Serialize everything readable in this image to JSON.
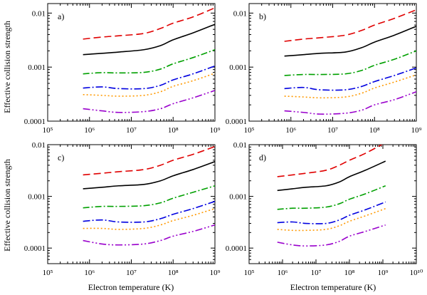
{
  "figure": {
    "ylabel": "Effective collision strength",
    "xlabel": "Electron temperature (K)"
  },
  "series_styles": [
    {
      "name": "series-1",
      "color": "#e00000",
      "dash": "10,5"
    },
    {
      "name": "series-2",
      "color": "#000000",
      "dash": ""
    },
    {
      "name": "series-3",
      "color": "#00a000",
      "dash": "9,3,2,3"
    },
    {
      "name": "series-4",
      "color": "#0000e0",
      "dash": "10,3,2,3"
    },
    {
      "name": "series-5",
      "color": "#ff9900",
      "dash": "2,3"
    },
    {
      "name": "series-6",
      "color": "#9900cc",
      "dash": "10,3,2,3,2,3"
    }
  ],
  "chart_data": [
    {
      "type": "line",
      "panel": "a)",
      "xscale": "log",
      "yscale": "log",
      "xlim": [
        100000,
        1000000000
      ],
      "ylim": [
        0.0001,
        0.015
      ],
      "xticks": [
        "10^5",
        "10^6",
        "10^7",
        "10^8",
        "10^9"
      ],
      "yticks": [
        "0.0001",
        "0.001",
        "0.01"
      ],
      "series": [
        {
          "name": "series-1",
          "x": [
            700000,
            2000000,
            5000000,
            20000000,
            50000000,
            100000000,
            300000000,
            1000000000
          ],
          "values": [
            0.0033,
            0.0036,
            0.0038,
            0.0042,
            0.0052,
            0.0065,
            0.0085,
            0.0125
          ]
        },
        {
          "name": "series-2",
          "x": [
            700000,
            2000000,
            5000000,
            20000000,
            50000000,
            100000000,
            300000000,
            1000000000
          ],
          "values": [
            0.0017,
            0.0018,
            0.0019,
            0.0021,
            0.0025,
            0.0032,
            0.0043,
            0.0062
          ]
        },
        {
          "name": "series-3",
          "x": [
            700000,
            2000000,
            5000000,
            20000000,
            50000000,
            100000000,
            300000000,
            1000000000
          ],
          "values": [
            0.00075,
            0.00079,
            0.00078,
            0.0008,
            0.00092,
            0.00115,
            0.0015,
            0.0021
          ]
        },
        {
          "name": "series-4",
          "x": [
            700000,
            2000000,
            5000000,
            20000000,
            50000000,
            100000000,
            300000000,
            1000000000
          ],
          "values": [
            0.00041,
            0.00043,
            0.0004,
            0.0004,
            0.00046,
            0.00058,
            0.00075,
            0.00105
          ]
        },
        {
          "name": "series-5",
          "x": [
            700000,
            2000000,
            5000000,
            20000000,
            50000000,
            100000000,
            300000000,
            1000000000
          ],
          "values": [
            0.00031,
            0.0003,
            0.00029,
            0.0003,
            0.00035,
            0.00044,
            0.00056,
            0.00077
          ]
        },
        {
          "name": "series-6",
          "x": [
            700000,
            2000000,
            5000000,
            20000000,
            50000000,
            100000000,
            300000000,
            1000000000
          ],
          "values": [
            0.00017,
            0.000155,
            0.000145,
            0.00015,
            0.00017,
            0.00021,
            0.00027,
            0.00037
          ]
        }
      ]
    },
    {
      "type": "line",
      "panel": "b)",
      "xscale": "log",
      "yscale": "log",
      "xlim": [
        100000,
        1000000000
      ],
      "ylim": [
        0.0001,
        0.015
      ],
      "xticks": [
        "10^5",
        "10^6",
        "10^7",
        "10^8",
        "10^9"
      ],
      "yticks": [
        "0.0001",
        "0.001",
        "0.01"
      ],
      "series": [
        {
          "name": "series-1",
          "x": [
            700000,
            2000000,
            5000000,
            20000000,
            50000000,
            100000000,
            300000000,
            1000000000
          ],
          "values": [
            0.003,
            0.0033,
            0.0035,
            0.0039,
            0.0048,
            0.006,
            0.008,
            0.0115
          ]
        },
        {
          "name": "series-2",
          "x": [
            700000,
            2000000,
            5000000,
            20000000,
            50000000,
            100000000,
            300000000,
            1000000000
          ],
          "values": [
            0.0016,
            0.0017,
            0.0018,
            0.0019,
            0.0023,
            0.0029,
            0.0039,
            0.0057
          ]
        },
        {
          "name": "series-3",
          "x": [
            700000,
            2000000,
            5000000,
            20000000,
            50000000,
            100000000,
            300000000,
            1000000000
          ],
          "values": [
            0.0007,
            0.00073,
            0.00073,
            0.00075,
            0.00087,
            0.00108,
            0.0014,
            0.002
          ]
        },
        {
          "name": "series-4",
          "x": [
            700000,
            2000000,
            5000000,
            20000000,
            50000000,
            100000000,
            300000000,
            1000000000
          ],
          "values": [
            0.0004,
            0.00042,
            0.00038,
            0.00038,
            0.00044,
            0.00054,
            0.0007,
            0.00097
          ]
        },
        {
          "name": "series-5",
          "x": [
            700000,
            2000000,
            5000000,
            20000000,
            50000000,
            100000000,
            300000000,
            1000000000
          ],
          "values": [
            0.00029,
            0.00028,
            0.00027,
            0.00028,
            0.00033,
            0.00041,
            0.00053,
            0.00072
          ]
        },
        {
          "name": "series-6",
          "x": [
            700000,
            2000000,
            5000000,
            20000000,
            50000000,
            100000000,
            300000000,
            1000000000
          ],
          "values": [
            0.000155,
            0.000145,
            0.000135,
            0.00014,
            0.00016,
            0.0002,
            0.00025,
            0.00035
          ]
        }
      ]
    },
    {
      "type": "line",
      "panel": "c)",
      "xscale": "log",
      "yscale": "log",
      "xlim": [
        100000,
        1000000000
      ],
      "ylim": [
        5e-05,
        0.01
      ],
      "xticks": [
        "10^5",
        "10^6",
        "10^7",
        "10^8",
        "10^9"
      ],
      "yticks": [
        "0.0001",
        "0.001",
        "0.01"
      ],
      "series": [
        {
          "name": "series-1",
          "x": [
            700000,
            2000000,
            5000000,
            20000000,
            50000000,
            100000000,
            300000000,
            1000000000
          ],
          "values": [
            0.0026,
            0.0028,
            0.003,
            0.0033,
            0.004,
            0.005,
            0.0065,
            0.0092
          ]
        },
        {
          "name": "series-2",
          "x": [
            700000,
            2000000,
            5000000,
            20000000,
            50000000,
            100000000,
            300000000,
            1000000000
          ],
          "values": [
            0.0014,
            0.0015,
            0.0016,
            0.0017,
            0.002,
            0.0025,
            0.0033,
            0.0047
          ]
        },
        {
          "name": "series-3",
          "x": [
            700000,
            2000000,
            5000000,
            20000000,
            50000000,
            100000000,
            300000000,
            1000000000
          ],
          "values": [
            0.0006,
            0.00064,
            0.00064,
            0.00066,
            0.00075,
            0.00092,
            0.0012,
            0.0016
          ]
        },
        {
          "name": "series-4",
          "x": [
            700000,
            2000000,
            5000000,
            20000000,
            50000000,
            100000000,
            300000000,
            1000000000
          ],
          "values": [
            0.00033,
            0.00035,
            0.00032,
            0.00032,
            0.00037,
            0.00045,
            0.00058,
            0.0008
          ]
        },
        {
          "name": "series-5",
          "x": [
            700000,
            2000000,
            5000000,
            20000000,
            50000000,
            100000000,
            300000000,
            1000000000
          ],
          "values": [
            0.00024,
            0.00024,
            0.00023,
            0.00024,
            0.00028,
            0.00034,
            0.00043,
            0.00058
          ]
        },
        {
          "name": "series-6",
          "x": [
            700000,
            2000000,
            5000000,
            20000000,
            50000000,
            100000000,
            300000000,
            1000000000
          ],
          "values": [
            0.00014,
            0.00012,
            0.000115,
            0.00012,
            0.00014,
            0.00017,
            0.00021,
            0.00028
          ]
        }
      ]
    },
    {
      "type": "line",
      "panel": "d)",
      "xscale": "log",
      "yscale": "log",
      "xlim": [
        100000,
        10000000000
      ],
      "ylim": [
        5e-05,
        0.01
      ],
      "xticks": [
        "10^5",
        "10^6",
        "10^7",
        "10^8",
        "10^9",
        "10^10"
      ],
      "yticks": [
        "0.0001",
        "0.001",
        "0.01"
      ],
      "series": [
        {
          "name": "series-1",
          "x": [
            700000,
            2000000,
            5000000,
            20000000,
            50000000,
            100000000,
            300000000,
            1200000000
          ],
          "values": [
            0.0024,
            0.0026,
            0.0028,
            0.0032,
            0.004,
            0.005,
            0.0068,
            0.011
          ]
        },
        {
          "name": "series-2",
          "x": [
            700000,
            2000000,
            5000000,
            20000000,
            50000000,
            100000000,
            300000000,
            1200000000
          ],
          "values": [
            0.0013,
            0.0014,
            0.0015,
            0.0016,
            0.0019,
            0.0024,
            0.0032,
            0.0048
          ]
        },
        {
          "name": "series-3",
          "x": [
            700000,
            2000000,
            5000000,
            20000000,
            50000000,
            100000000,
            300000000,
            1200000000
          ],
          "values": [
            0.00056,
            0.00059,
            0.00059,
            0.00062,
            0.00072,
            0.00088,
            0.00112,
            0.0016
          ]
        },
        {
          "name": "series-4",
          "x": [
            700000,
            2000000,
            5000000,
            20000000,
            50000000,
            100000000,
            300000000,
            1200000000
          ],
          "values": [
            0.00031,
            0.00032,
            0.0003,
            0.0003,
            0.00035,
            0.00043,
            0.00055,
            0.00078
          ]
        },
        {
          "name": "series-5",
          "x": [
            700000,
            2000000,
            5000000,
            20000000,
            50000000,
            100000000,
            300000000,
            1200000000
          ],
          "values": [
            0.00023,
            0.00022,
            0.00022,
            0.00023,
            0.00027,
            0.00033,
            0.00042,
            0.00058
          ]
        },
        {
          "name": "series-6",
          "x": [
            700000,
            2000000,
            5000000,
            20000000,
            50000000,
            100000000,
            300000000,
            1200000000
          ],
          "values": [
            0.00013,
            0.000115,
            0.00011,
            0.000115,
            0.000135,
            0.00017,
            0.00021,
            0.00028
          ]
        }
      ]
    }
  ]
}
